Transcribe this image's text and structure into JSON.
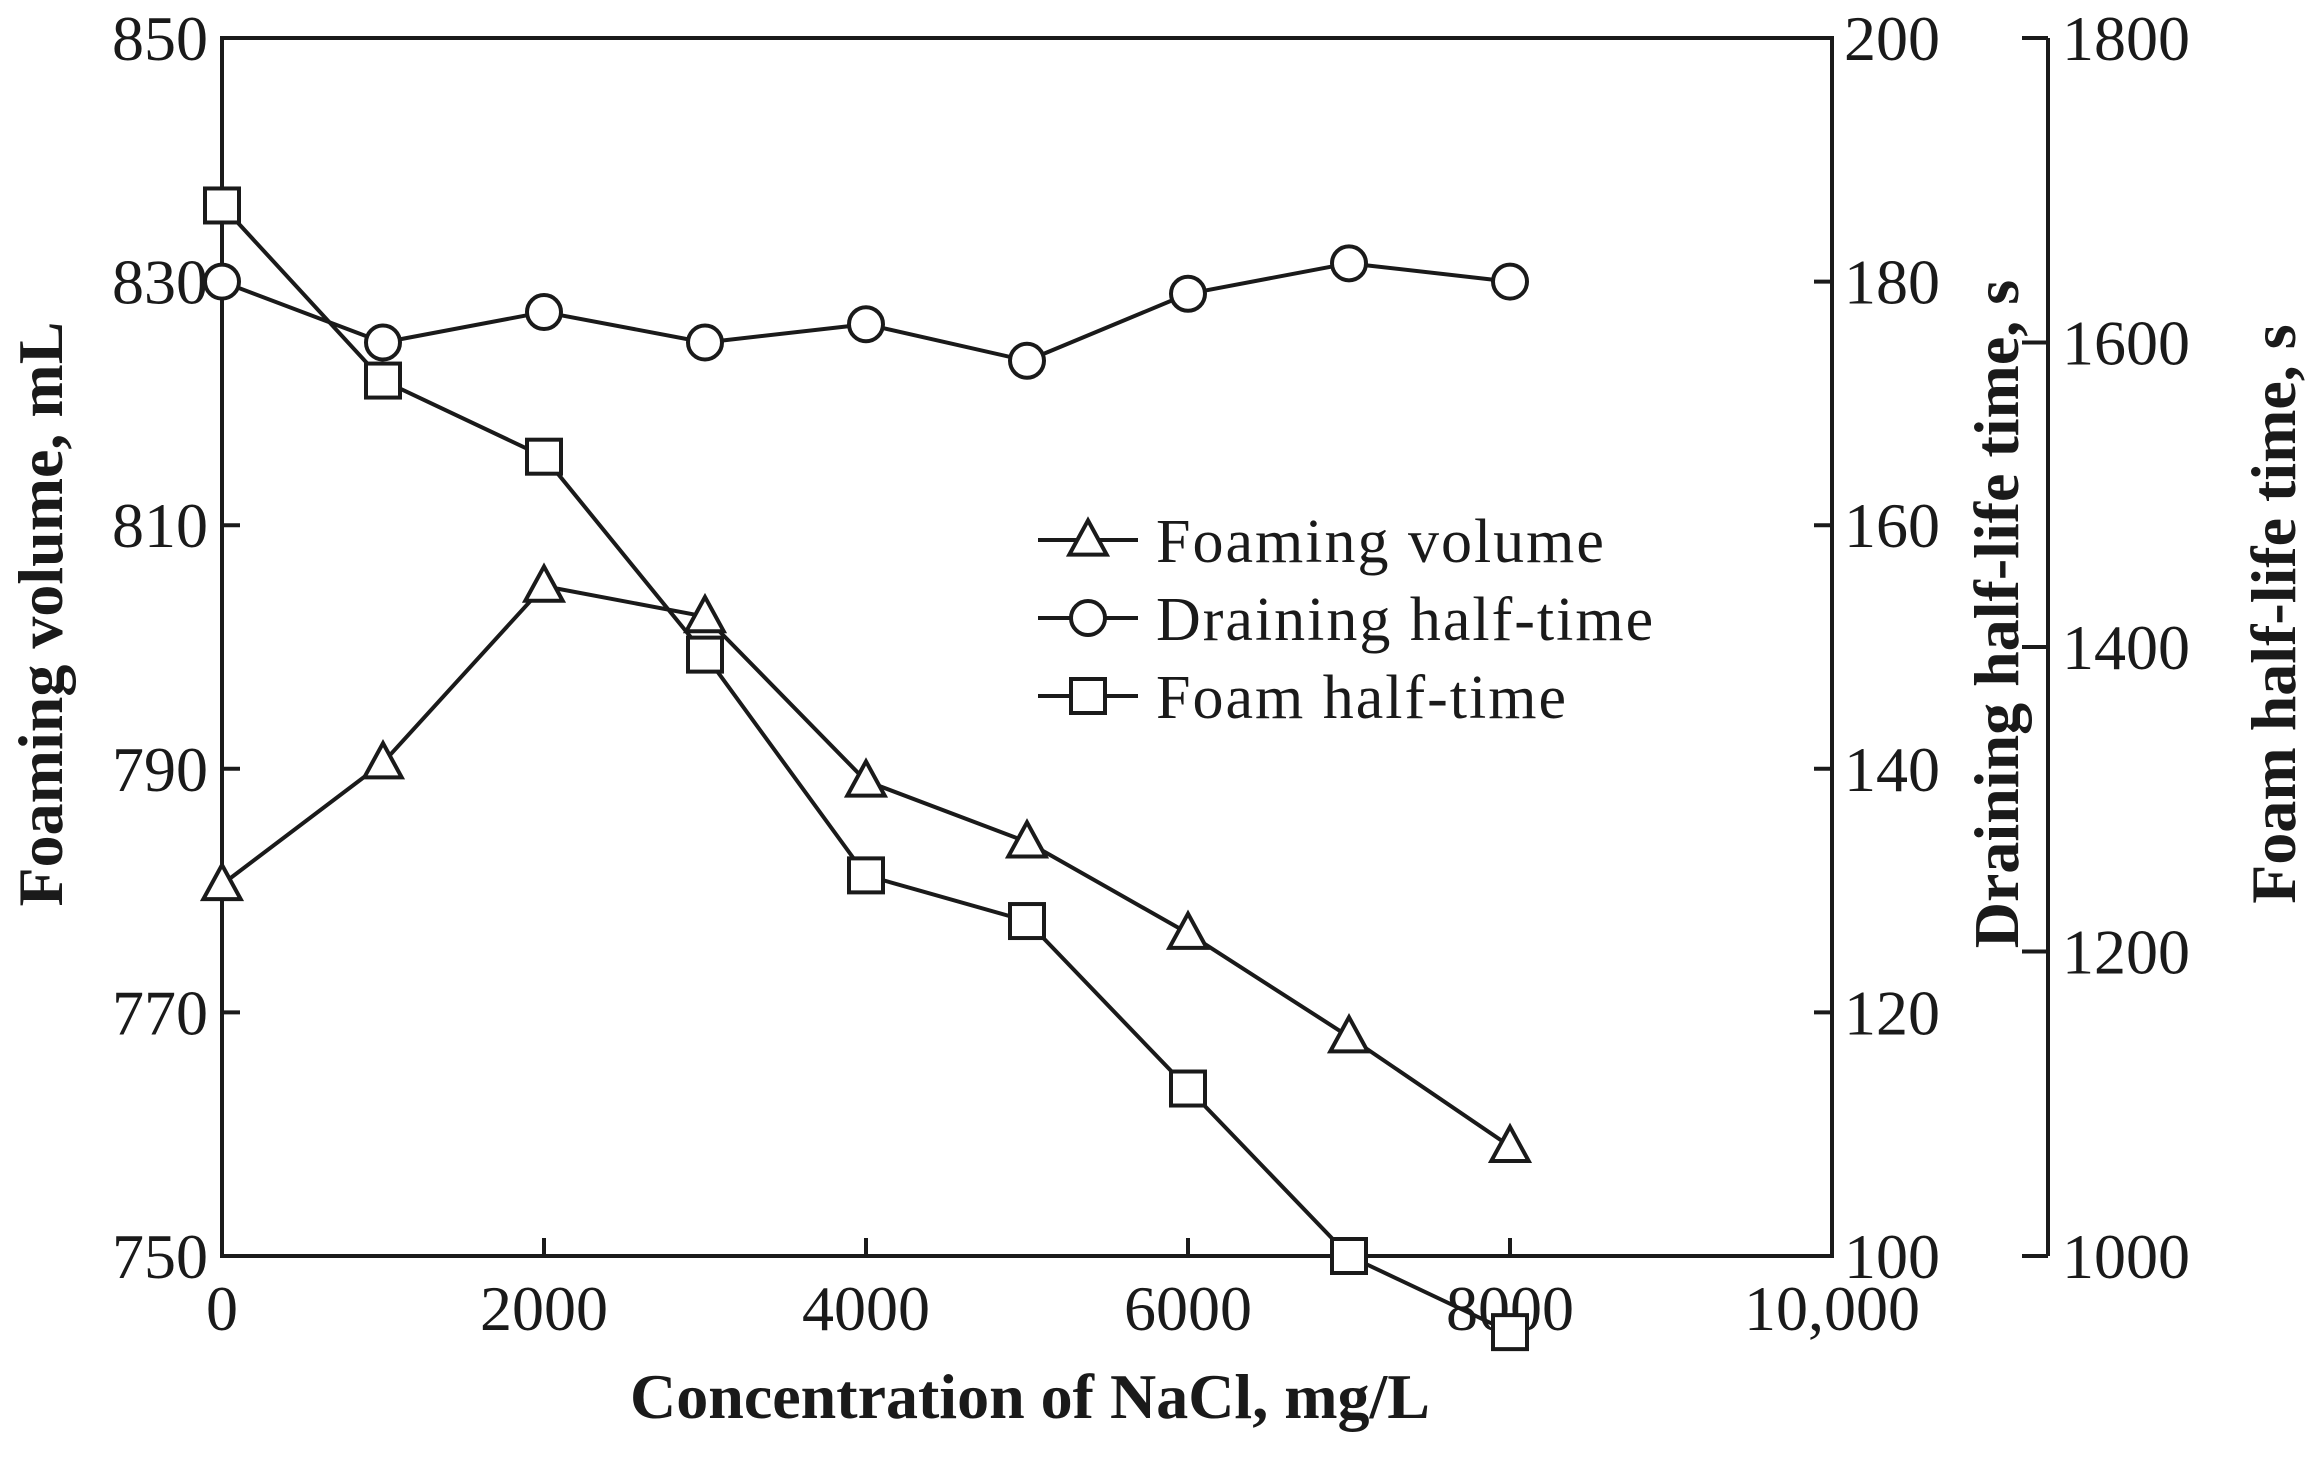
{
  "chart_data": {
    "type": "line",
    "xlabel": "Concentration of NaCl, mg/L",
    "x": [
      0,
      1000,
      2000,
      3000,
      4000,
      5000,
      6000,
      7000,
      8000
    ],
    "xlim": [
      0,
      10000
    ],
    "x_ticks": [
      0,
      2000,
      4000,
      6000,
      8000,
      10000
    ],
    "x_tick_labels": [
      "0",
      "2000",
      "4000",
      "6000",
      "8000",
      "10,000"
    ],
    "axes": {
      "left": {
        "label": "Foaming volume, mL",
        "lim": [
          750,
          850
        ],
        "ticks": [
          750,
          770,
          790,
          810,
          830,
          850
        ],
        "tick_labels": [
          "750",
          "770",
          "790",
          "810",
          "830",
          "850"
        ]
      },
      "right1": {
        "label": "Draining half-life time, s",
        "lim": [
          100,
          200
        ],
        "ticks": [
          100,
          120,
          140,
          160,
          180,
          200
        ],
        "tick_labels": [
          "100",
          "120",
          "140",
          "160",
          "180",
          "200"
        ]
      },
      "right2": {
        "label": "Foam half-life time, s",
        "lim": [
          1000,
          1800
        ],
        "ticks": [
          1000,
          1200,
          1400,
          1600,
          1800
        ],
        "tick_labels": [
          "1000",
          "1200",
          "1400",
          "1600",
          "1800"
        ]
      }
    },
    "series": [
      {
        "name": "Foaming volume",
        "axis": "left",
        "marker": "triangle",
        "values": [
          780.5,
          790.5,
          805,
          802.5,
          789,
          784,
          776.5,
          768,
          759
        ]
      },
      {
        "name": "Draining half-time",
        "axis": "right1",
        "marker": "circle",
        "values": [
          180,
          175,
          177.5,
          175,
          176.5,
          173.5,
          179,
          181.5,
          180
        ]
      },
      {
        "name": "Foam half-time",
        "axis": "right2",
        "marker": "square",
        "values": [
          1690,
          1575,
          1525,
          1395,
          1250,
          1220,
          1110,
          1000,
          950
        ]
      }
    ],
    "legend_position": "center-right"
  }
}
